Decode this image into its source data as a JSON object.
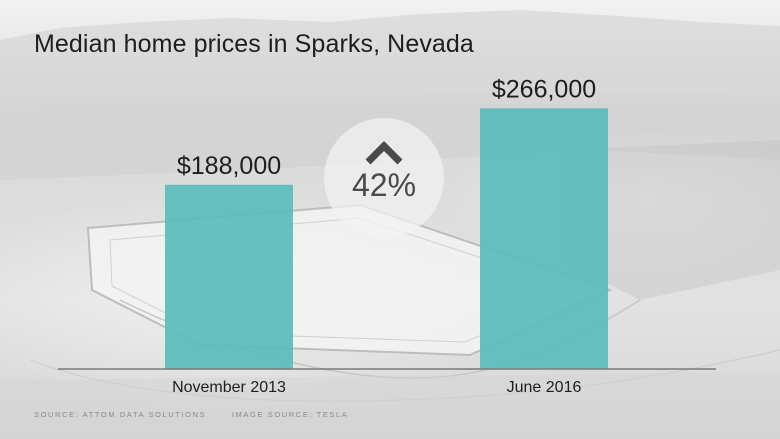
{
  "chart_data": {
    "type": "bar",
    "title": "Median home prices in Sparks, Nevada",
    "categories": [
      "November 2013",
      "June 2016"
    ],
    "values": [
      188000,
      266000
    ],
    "value_labels": [
      "$188,000",
      "$266,000"
    ],
    "ylim": [
      0,
      300000
    ],
    "grid": false,
    "bar_color": "#5bbcbc",
    "annotation": {
      "text": "42%",
      "icon": "chevron-up-icon"
    }
  },
  "credits": {
    "data_source": "SOURCE: ATTOM DATA SOLUTIONS",
    "image_source": "IMAGE SOURCE: TESLA"
  }
}
